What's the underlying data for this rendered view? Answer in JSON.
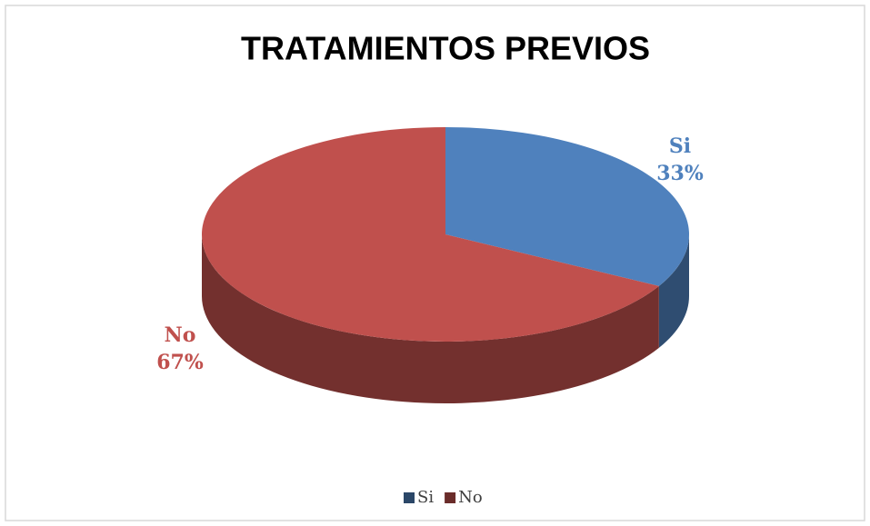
{
  "chart_data": {
    "type": "pie",
    "title": "TRATAMIENTOS PREVIOS",
    "categories": [
      "Si",
      "No"
    ],
    "values": [
      33,
      67
    ],
    "value_labels": [
      "33%",
      "67%"
    ],
    "colors": [
      "#4f81bd",
      "#c0504d"
    ],
    "legend": "bottom"
  }
}
